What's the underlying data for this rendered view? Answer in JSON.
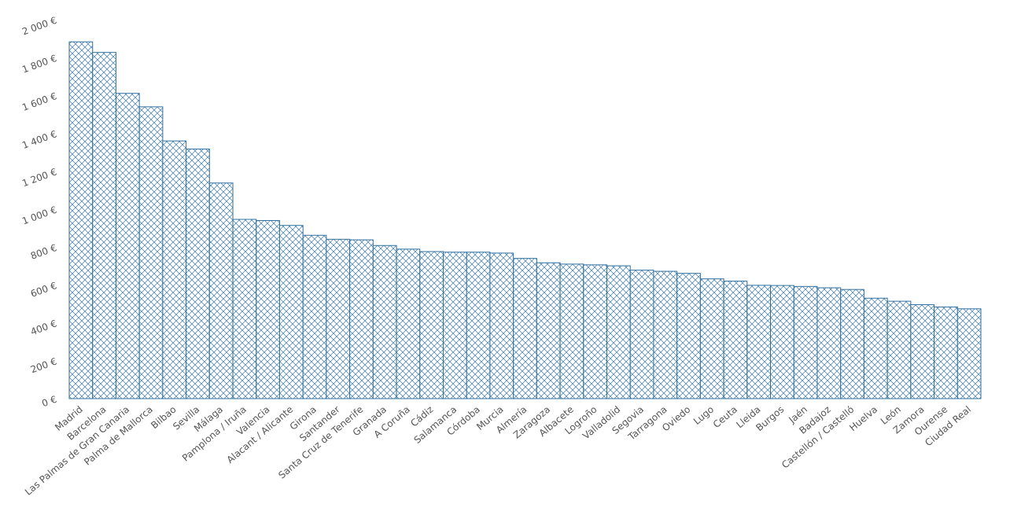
{
  "colors": {
    "bar_stroke": "#2f6f9f",
    "hatch": "#3a7ab0",
    "text": "#555555",
    "background": "#ffffff"
  },
  "chart_data": {
    "type": "bar",
    "title": "",
    "xlabel": "",
    "ylabel": "",
    "ylim": [
      0,
      2000
    ],
    "y_ticks": [
      0,
      200,
      400,
      600,
      800,
      1000,
      1200,
      1400,
      1600,
      1800,
      2000
    ],
    "y_tick_labels": [
      "0 €",
      "200 €",
      "400 €",
      "600 €",
      "800 €",
      "1 000 €",
      "1 200 €",
      "1 400 €",
      "1 600 €",
      "1 800 €",
      "2 000 €"
    ],
    "grid": false,
    "legend": "none",
    "bar_fill": "diagonal crosshatch",
    "categories": [
      "Madrid",
      "Barcelona",
      "Las Palmas de Gran Canaria",
      "Palma de Mallorca",
      "Bilbao",
      "Sevilla",
      "Málaga",
      "Pamplona / Iruña",
      "Valencia",
      "Alacant / Alicante",
      "Girona",
      "Santander",
      "Santa Cruz de Tenerife",
      "Granada",
      "A Coruña",
      "Cádiz",
      "Salamanca",
      "Córdoba",
      "Murcia",
      "Almería",
      "Zaragoza",
      "Albacete",
      "Logroño",
      "Valladolid",
      "Segovia",
      "Tarragona",
      "Oviedo",
      "Lugo",
      "Ceuta",
      "Lleida",
      "Burgos",
      "Jaén",
      "Badajoz",
      "Castellón / Castelló",
      "Huelva",
      "León",
      "Zamora",
      "Ourense",
      "Ciudad Real"
    ],
    "values": [
      1883,
      1827,
      1611,
      1540,
      1360,
      1317,
      1138,
      946,
      940,
      914,
      862,
      841,
      838,
      808,
      789,
      776,
      773,
      773,
      768,
      740,
      717,
      710,
      706,
      701,
      678,
      672,
      661,
      632,
      620,
      598,
      597,
      592,
      585,
      576,
      530,
      514,
      496,
      484,
      474
    ]
  }
}
